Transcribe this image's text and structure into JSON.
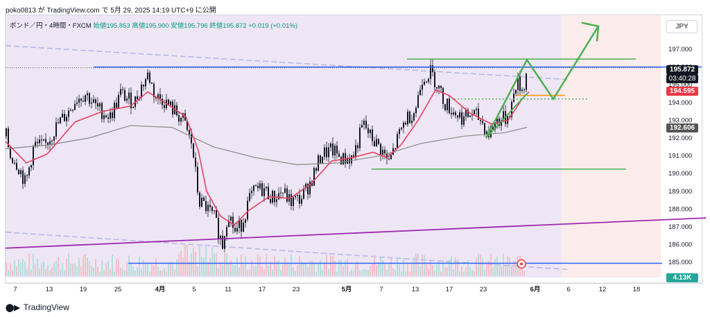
{
  "header": {
    "text": "poko0813 が TradingView.com で 5月 29, 2025 14:19 UTC+9 に公開"
  },
  "symbol": {
    "name": "ポンド／円・4時間・FXCM",
    "ohlc": "始値195.853 高値195.900 安値195.796 終値195.872 +0.019 (+0.01%)"
  },
  "currency": "JPY",
  "footer": {
    "brand": "TradingView"
  },
  "colors": {
    "bull": "#089981",
    "bear": "#f23645",
    "price_blue": "#2962ff",
    "ema": "#e84060",
    "sma": "#888888",
    "green": "#4caf50",
    "orange": "#ff9800",
    "purple": "#9c27b0"
  },
  "chart_data": {
    "type": "candlestick",
    "ylim": [
      184.3,
      199.2
    ],
    "y_ticks": [
      185,
      186,
      187,
      188,
      189,
      190,
      191,
      192,
      193,
      194,
      195,
      196,
      197
    ],
    "x_ticks": [
      "7",
      "13",
      "19",
      "25",
      "4月",
      "5",
      "11",
      "17",
      "23",
      "5月",
      "7",
      "13",
      "17",
      "23",
      "6月",
      "6",
      "12",
      "18"
    ],
    "price_tags": {
      "last": "195.872",
      "countdown": "03:40:28",
      "ema_value": "194.595",
      "sma_value": "192.606",
      "volume": "4.13K"
    },
    "close_path": [
      [
        0,
        192.1
      ],
      [
        6,
        191.0
      ],
      [
        12,
        190.8
      ],
      [
        20,
        190.2
      ],
      [
        28,
        189.4
      ],
      [
        40,
        191.6
      ],
      [
        55,
        191.5
      ],
      [
        75,
        192.8
      ],
      [
        90,
        193.5
      ],
      [
        100,
        194.2
      ],
      [
        115,
        194.5
      ],
      [
        130,
        193.7
      ],
      [
        150,
        193.2
      ],
      [
        165,
        194.5
      ],
      [
        175,
        194.2
      ],
      [
        185,
        194.0
      ],
      [
        195,
        194.9
      ],
      [
        205,
        195.6
      ],
      [
        215,
        194.3
      ],
      [
        225,
        194.2
      ],
      [
        240,
        193.6
      ],
      [
        255,
        193.0
      ],
      [
        268,
        191.6
      ],
      [
        278,
        188.4
      ],
      [
        286,
        188.2
      ],
      [
        300,
        187.5
      ],
      [
        312,
        186.0
      ],
      [
        320,
        187.9
      ],
      [
        330,
        186.7
      ],
      [
        340,
        187.2
      ],
      [
        350,
        188.5
      ],
      [
        360,
        189.1
      ],
      [
        372,
        189.1
      ],
      [
        385,
        188.6
      ],
      [
        398,
        189.0
      ],
      [
        410,
        188.4
      ],
      [
        425,
        188.6
      ],
      [
        440,
        189.6
      ],
      [
        455,
        191.1
      ],
      [
        470,
        191.3
      ],
      [
        485,
        190.8
      ],
      [
        500,
        190.9
      ],
      [
        515,
        192.8
      ],
      [
        525,
        192.1
      ],
      [
        540,
        191.4
      ],
      [
        552,
        190.6
      ],
      [
        565,
        192.0
      ],
      [
        575,
        193.0
      ],
      [
        590,
        193.6
      ],
      [
        600,
        195.4
      ],
      [
        612,
        195.7
      ],
      [
        622,
        195.0
      ],
      [
        632,
        194.0
      ],
      [
        645,
        193.5
      ],
      [
        660,
        193.1
      ],
      [
        672,
        193.4
      ],
      [
        685,
        193.0
      ],
      [
        695,
        192.2
      ],
      [
        708,
        193.0
      ],
      [
        720,
        193.1
      ],
      [
        728,
        193.7
      ],
      [
        736,
        195.2
      ],
      [
        745,
        194.7
      ],
      [
        752,
        195.9
      ]
    ],
    "ema_path": [
      [
        0,
        191.8
      ],
      [
        30,
        190.6
      ],
      [
        60,
        191.1
      ],
      [
        100,
        192.9
      ],
      [
        140,
        193.5
      ],
      [
        180,
        193.8
      ],
      [
        205,
        194.6
      ],
      [
        230,
        194.0
      ],
      [
        260,
        193.2
      ],
      [
        278,
        191.3
      ],
      [
        290,
        189.0
      ],
      [
        310,
        187.6
      ],
      [
        330,
        187.1
      ],
      [
        350,
        187.9
      ],
      [
        380,
        188.7
      ],
      [
        410,
        188.6
      ],
      [
        440,
        189.4
      ],
      [
        470,
        190.7
      ],
      [
        500,
        190.9
      ],
      [
        530,
        191.2
      ],
      [
        550,
        190.9
      ],
      [
        570,
        191.6
      ],
      [
        595,
        193.0
      ],
      [
        620,
        194.7
      ],
      [
        640,
        194.4
      ],
      [
        670,
        193.4
      ],
      [
        700,
        192.8
      ],
      [
        725,
        193.0
      ],
      [
        745,
        194.2
      ],
      [
        755,
        194.6
      ]
    ],
    "sma_path": [
      [
        0,
        191.4
      ],
      [
        60,
        191.6
      ],
      [
        120,
        192.0
      ],
      [
        180,
        192.7
      ],
      [
        240,
        192.6
      ],
      [
        300,
        191.5
      ],
      [
        360,
        190.9
      ],
      [
        420,
        190.5
      ],
      [
        480,
        190.6
      ],
      [
        540,
        191.0
      ],
      [
        600,
        191.7
      ],
      [
        660,
        192.1
      ],
      [
        720,
        192.3
      ],
      [
        752,
        192.6
      ]
    ],
    "annotations": {
      "upper_green": 196.45,
      "lower_green": 190.25,
      "blue_level": 196.0,
      "bottom_blue": 184.95,
      "dotted_green": 194.2,
      "orange_level": 194.4,
      "channel_upper": [
        [
          0,
          197.2
        ],
        [
          810,
          195.3
        ]
      ],
      "channel_lower": [
        [
          0,
          186.7
        ],
        [
          810,
          184.6
        ]
      ],
      "purple_trend": [
        [
          0,
          185.8
        ],
        [
          1010,
          187.5
        ]
      ],
      "green_wedge": [
        [
          693,
          192.0
        ],
        [
          752,
          196.4
        ],
        [
          790,
          194.2
        ],
        [
          855,
          198.3
        ]
      ]
    }
  }
}
